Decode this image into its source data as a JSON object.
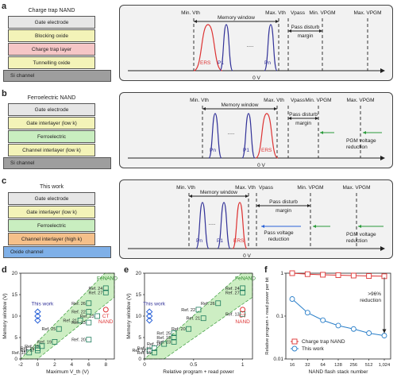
{
  "labels": {
    "a": "a",
    "b": "b",
    "c": "c",
    "d": "d",
    "e": "e",
    "f": "f"
  },
  "stacks": {
    "a": {
      "title": "Charge trap NAND",
      "layers": [
        "Gate electrode",
        "Blocking oxide",
        "Charge trap layer",
        "Tunnelling oxide"
      ],
      "base": "Si channel",
      "colors": [
        "#e6e6e6",
        "#f3f3b8",
        "#f5c6c6",
        "#f3f3b8"
      ],
      "base_color": "#9e9e9e"
    },
    "b": {
      "title": "Ferroelectric NAND",
      "layers": [
        "Gate electrode",
        "Gate interlayer (low k)",
        "Ferroelectric",
        "Channel interlayer (low k)"
      ],
      "base": "Si channel",
      "colors": [
        "#e6e6e6",
        "#f3f3b8",
        "#c9eec0",
        "#f3f3b8"
      ],
      "base_color": "#9e9e9e"
    },
    "c": {
      "title": "This work",
      "layers": [
        "Gate electrode",
        "Gate interlayer (low k)",
        "Ferroelectric",
        "Channel interlayer (high k)"
      ],
      "base": "Oxide channel",
      "colors": [
        "#e6e6e6",
        "#f3f3b8",
        "#c9eec0",
        "#f5c08a"
      ],
      "base_color": "#7fb0e8"
    }
  },
  "panels": {
    "a": {
      "min_vth": "Min. Vth",
      "max_vth": "Max. Vth",
      "vpass": "Vpass",
      "min_vpgm": "Min. VPGM",
      "max_vpgm": "Max. VPGM",
      "memory_window": "Memory window",
      "pass_disturb": "Pass disturb margin",
      "ers": "ERS",
      "p1": "P1",
      "pn": "Pn",
      "zero": "0 V",
      "dots": "....."
    },
    "b": {
      "min_vth": "Min. Vth",
      "max_vth": "Max. Vth",
      "vpass": "Vpass",
      "min_vpgm": "Min. VPGM",
      "max_vpgm": "Max. VPGM",
      "memory_window": "Memory window",
      "pass_disturb": "Pass disturb margin",
      "ers": "ERS",
      "p1": "P1",
      "pn": "Pn",
      "zero": "0 V",
      "pgm_reduction": "PGM voltage reduction",
      "dots": "....."
    },
    "c": {
      "min_vth": "Min. Vth",
      "max_vth": "Max. Vth",
      "vpass": "Vpass",
      "min_vpgm": "Min. VPGM",
      "max_vpgm": "Max. VPGM",
      "memory_window": "Memory window",
      "pass_disturb": "Pass disturb margin",
      "ers": "ERS",
      "p1": "P1",
      "pn": "Pn",
      "zero": "0 V",
      "pass_reduction": "Pass voltage reduction",
      "pgm_reduction": "PGM voltage reduction",
      "dots": "....."
    }
  },
  "chart_data": [
    {
      "id": "d",
      "type": "scatter",
      "xlabel": "Maximum V_th (V)",
      "ylabel": "Memory window (V)",
      "xlim": [
        -2,
        9
      ],
      "ylim": [
        0,
        20
      ],
      "xticks": [
        -2,
        0,
        2,
        4,
        6,
        8
      ],
      "yticks": [
        0,
        5,
        10,
        15,
        20
      ],
      "band_label": "FeNAND",
      "this_work_label": "This work",
      "ct_label": "CT NAND",
      "this_work": [
        {
          "x": 0,
          "y": 9
        },
        {
          "x": 0,
          "y": 10
        },
        {
          "x": 0,
          "y": 11
        }
      ],
      "ct": {
        "x": 8,
        "y": 11.5
      },
      "refs": [
        {
          "x": 8,
          "y": 16.5,
          "label": "Ref. 24"
        },
        {
          "x": 8,
          "y": 15.5,
          "label": "Ref. 27"
        },
        {
          "x": 6,
          "y": 13,
          "label": "Ref. 26"
        },
        {
          "x": 6,
          "y": 11,
          "label": "Ref. 22"
        },
        {
          "x": 7,
          "y": 10,
          "label": "Ref. 13"
        },
        {
          "x": 5,
          "y": 9,
          "label": "Ref. 21"
        },
        {
          "x": 6,
          "y": 8.5,
          "label": "Ref. 23"
        },
        {
          "x": 2.5,
          "y": 7,
          "label": "Ref. 25"
        },
        {
          "x": 6,
          "y": 4.5,
          "label": "Ref. 20"
        },
        {
          "x": 2,
          "y": 4,
          "label": "Ref. 19"
        },
        {
          "x": 0.5,
          "y": 3,
          "label": "Ref. 18"
        },
        {
          "x": 0,
          "y": 2.5,
          "label": "Ref. 16"
        },
        {
          "x": 0,
          "y": 2,
          "label": "Ref. 17"
        },
        {
          "x": -1,
          "y": 1.5,
          "label": "Ref. 15"
        }
      ]
    },
    {
      "id": "e",
      "type": "scatter",
      "xlabel": "Relative program + read power",
      "ylabel": "Memory window (V)",
      "xlim": [
        0,
        1.1
      ],
      "ylim": [
        0,
        20
      ],
      "xticks": [
        0,
        0.5,
        1.0
      ],
      "yticks": [
        0,
        5,
        10,
        15,
        20
      ],
      "band_label": "FeNAND",
      "this_work_label": "This work",
      "ct_label": "CT NAND",
      "this_work": [
        {
          "x": 0.05,
          "y": 9
        },
        {
          "x": 0.05,
          "y": 10
        },
        {
          "x": 0.05,
          "y": 11
        }
      ],
      "ct": {
        "x": 1.0,
        "y": 11.5
      },
      "refs": [
        {
          "x": 1.0,
          "y": 16.5,
          "label": "Ref. 24"
        },
        {
          "x": 1.0,
          "y": 15.5,
          "label": "Ref. 27"
        },
        {
          "x": 0.75,
          "y": 13,
          "label": "Ref. 26"
        },
        {
          "x": 0.55,
          "y": 11.5,
          "label": "Ref. 22"
        },
        {
          "x": 1.0,
          "y": 10.5,
          "label": "Ref. 13"
        },
        {
          "x": 0.6,
          "y": 9.5,
          "label": "Ref. 21"
        },
        {
          "x": 0.45,
          "y": 7,
          "label": "Ref. 20"
        },
        {
          "x": 0.3,
          "y": 6,
          "label": "Ref. 25"
        },
        {
          "x": 0.3,
          "y": 5,
          "label": "Ref. 19"
        },
        {
          "x": 0.2,
          "y": 3.5,
          "label": "Ref. 18"
        },
        {
          "x": 0.1,
          "y": 2.5,
          "label": "Ref. 16"
        },
        {
          "x": 0.05,
          "y": 2,
          "label": "Ref. 17"
        },
        {
          "x": 0.1,
          "y": 1.5,
          "label": "Ref. 15"
        },
        {
          "x": 0.3,
          "y": 4,
          "label": "Ref. 23"
        }
      ]
    },
    {
      "id": "f",
      "type": "line",
      "xlabel": "NAND flash stack number",
      "ylabel": "Relative program + read power per bit",
      "ylog": true,
      "ylim": [
        0.01,
        1
      ],
      "categories": [
        "16",
        "32",
        "64",
        "128",
        "256",
        "512",
        "1,024"
      ],
      "yticks": [
        "0.01",
        "0.1",
        "1"
      ],
      "annotation": ">96% reduction",
      "series": [
        {
          "name": "Charge trap NAND",
          "color": "#d33",
          "marker": "square",
          "values": [
            1,
            0.95,
            0.92,
            0.9,
            0.88,
            0.86,
            0.85
          ]
        },
        {
          "name": "This work",
          "color": "#2a7fc9",
          "marker": "circle",
          "values": [
            0.25,
            0.12,
            0.08,
            0.06,
            0.05,
            0.04,
            0.035
          ]
        }
      ]
    }
  ]
}
